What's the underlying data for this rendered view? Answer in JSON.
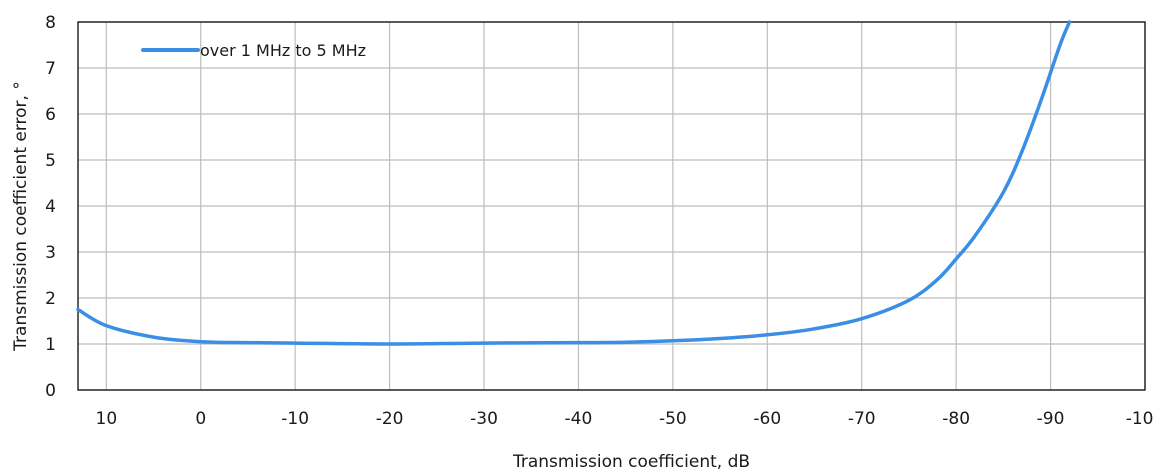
{
  "chart_data": {
    "type": "line",
    "title": "",
    "xlabel": "Transmission coefficient, dB",
    "ylabel": "Transmission coefficient error, °",
    "xlim": [
      13,
      -100
    ],
    "ylim": [
      0,
      8
    ],
    "x_ticks": [
      10,
      0,
      -10,
      -20,
      -30,
      -40,
      -50,
      -60,
      -70,
      -80,
      -90,
      -100
    ],
    "x_tick_labels": [
      "10",
      "0",
      "-10",
      "-20",
      "-30",
      "-40",
      "-50",
      "-60",
      "-70",
      "-80",
      "-90",
      "-100"
    ],
    "y_ticks": [
      0,
      1,
      2,
      3,
      4,
      5,
      6,
      7,
      8
    ],
    "y_tick_labels": [
      "0",
      "1",
      "2",
      "3",
      "4",
      "5",
      "6",
      "7",
      "8"
    ],
    "grid": true,
    "legend_position": "top-left",
    "series": [
      {
        "name": "over 1 MHz to 5 MHz",
        "color": "#3a8ee6",
        "x": [
          13,
          10,
          5,
          0,
          -5,
          -10,
          -20,
          -30,
          -40,
          -45,
          -50,
          -55,
          -60,
          -65,
          -70,
          -75,
          -78,
          -80,
          -82,
          -85,
          -87,
          -89,
          -91,
          -92
        ],
        "y": [
          1.75,
          1.4,
          1.15,
          1.05,
          1.03,
          1.02,
          1.0,
          1.02,
          1.03,
          1.04,
          1.07,
          1.12,
          1.2,
          1.33,
          1.55,
          1.95,
          2.4,
          2.85,
          3.35,
          4.3,
          5.2,
          6.3,
          7.5,
          8.0
        ]
      }
    ]
  }
}
